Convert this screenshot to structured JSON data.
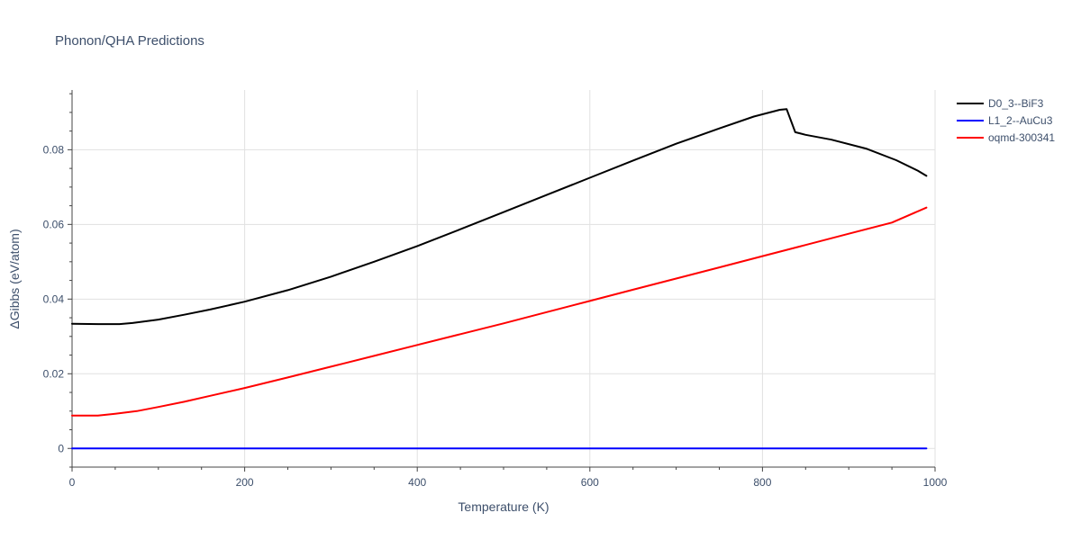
{
  "chart_data": {
    "type": "line",
    "title": "Phonon/QHA Predictions",
    "xlabel": "Temperature (K)",
    "ylabel": "ΔGibbs (eV/atom)",
    "xlim": [
      0,
      1000
    ],
    "ylim": [
      -0.005,
      0.096
    ],
    "x_ticks": [
      0,
      200,
      400,
      600,
      800,
      1000
    ],
    "x_tick_labels": [
      "0",
      "200",
      "400",
      "600",
      "800",
      "1000"
    ],
    "y_ticks": [
      0,
      0.02,
      0.04,
      0.06,
      0.08
    ],
    "y_tick_labels": [
      "0",
      "0.02",
      "0.04",
      "0.06",
      "0.08"
    ],
    "grid": true,
    "legend_position": "top-right",
    "series": [
      {
        "name": "D0_3--BiF3",
        "color": "#000000",
        "x": [
          0,
          30,
          55,
          70,
          100,
          130,
          160,
          200,
          250,
          300,
          350,
          400,
          450,
          500,
          550,
          600,
          650,
          700,
          750,
          790,
          810,
          820,
          828,
          838,
          850,
          880,
          920,
          955,
          980,
          990
        ],
        "y": [
          0.0334,
          0.0333,
          0.0333,
          0.0336,
          0.0345,
          0.0358,
          0.0372,
          0.0393,
          0.0424,
          0.046,
          0.05,
          0.0542,
          0.0587,
          0.0633,
          0.0679,
          0.0725,
          0.0771,
          0.0816,
          0.0857,
          0.0889,
          0.0901,
          0.0907,
          0.0909,
          0.0847,
          0.084,
          0.0827,
          0.0803,
          0.0772,
          0.0744,
          0.073
        ]
      },
      {
        "name": "L1_2--AuCu3",
        "color": "#0000ff",
        "x": [
          0,
          990
        ],
        "y": [
          0.0,
          0.0
        ]
      },
      {
        "name": "oqmd-300341",
        "color": "#ff0000",
        "x": [
          0,
          30,
          50,
          75,
          100,
          130,
          160,
          200,
          250,
          300,
          350,
          400,
          450,
          500,
          550,
          600,
          650,
          700,
          750,
          800,
          850,
          900,
          950,
          990
        ],
        "y": [
          0.0088,
          0.0088,
          0.0093,
          0.01,
          0.0111,
          0.0125,
          0.0141,
          0.0162,
          0.019,
          0.0219,
          0.0248,
          0.0277,
          0.0306,
          0.0335,
          0.0365,
          0.0395,
          0.0425,
          0.0455,
          0.0485,
          0.0515,
          0.0545,
          0.0575,
          0.0605,
          0.0645
        ]
      }
    ]
  }
}
